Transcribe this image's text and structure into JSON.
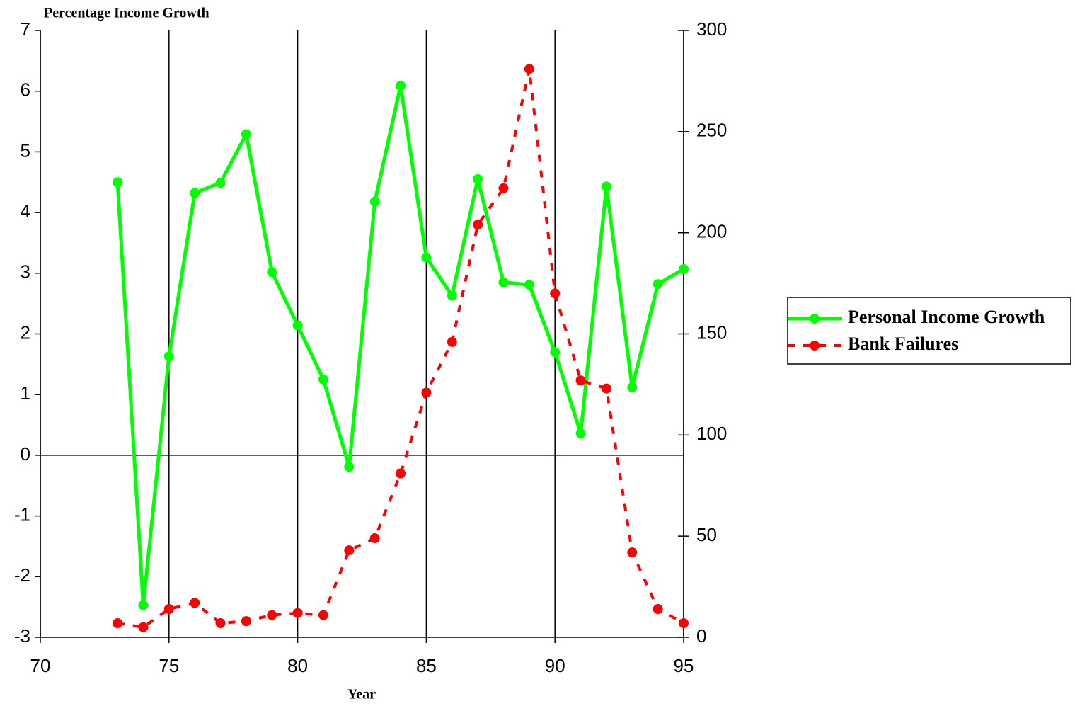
{
  "chart_data": {
    "type": "line",
    "title": "Percentage Income Growth",
    "x_label": "Year",
    "x": [
      73,
      74,
      75,
      76,
      77,
      78,
      79,
      80,
      81,
      82,
      83,
      84,
      85,
      86,
      87,
      88,
      89,
      90,
      91,
      92,
      93,
      94,
      95
    ],
    "series": [
      {
        "name": "Personal Income Growth",
        "color": "#00ff00",
        "line_style": "solid",
        "values": [
          4.5,
          -2.47,
          1.63,
          4.32,
          4.49,
          5.29,
          3.02,
          2.14,
          1.25,
          -0.19,
          4.18,
          6.09,
          3.26,
          2.63,
          4.55,
          2.85,
          2.81,
          1.7,
          0.36,
          4.43,
          1.12,
          2.82,
          3.07
        ]
      },
      {
        "name": "Bank Failures",
        "color": "#ff0000",
        "line_style": "dashed",
        "axis": "y2",
        "values": [
          7,
          5,
          14,
          17,
          7,
          8,
          11,
          12,
          11,
          43,
          49,
          81,
          121,
          146,
          204,
          222,
          281,
          170,
          127,
          123,
          42,
          14,
          7
        ]
      }
    ],
    "xlim": [
      70,
      95
    ],
    "xticks": [
      70,
      75,
      80,
      85,
      90,
      95
    ],
    "ylim": [
      -3,
      7
    ],
    "yticks": [
      -3,
      -2,
      -1,
      0,
      1,
      2,
      3,
      4,
      5,
      6,
      7
    ],
    "y2lim": [
      0,
      300
    ],
    "y2ticks": [
      0,
      50,
      100,
      150,
      200,
      250,
      300
    ],
    "x_grid": true,
    "legend": "right"
  }
}
